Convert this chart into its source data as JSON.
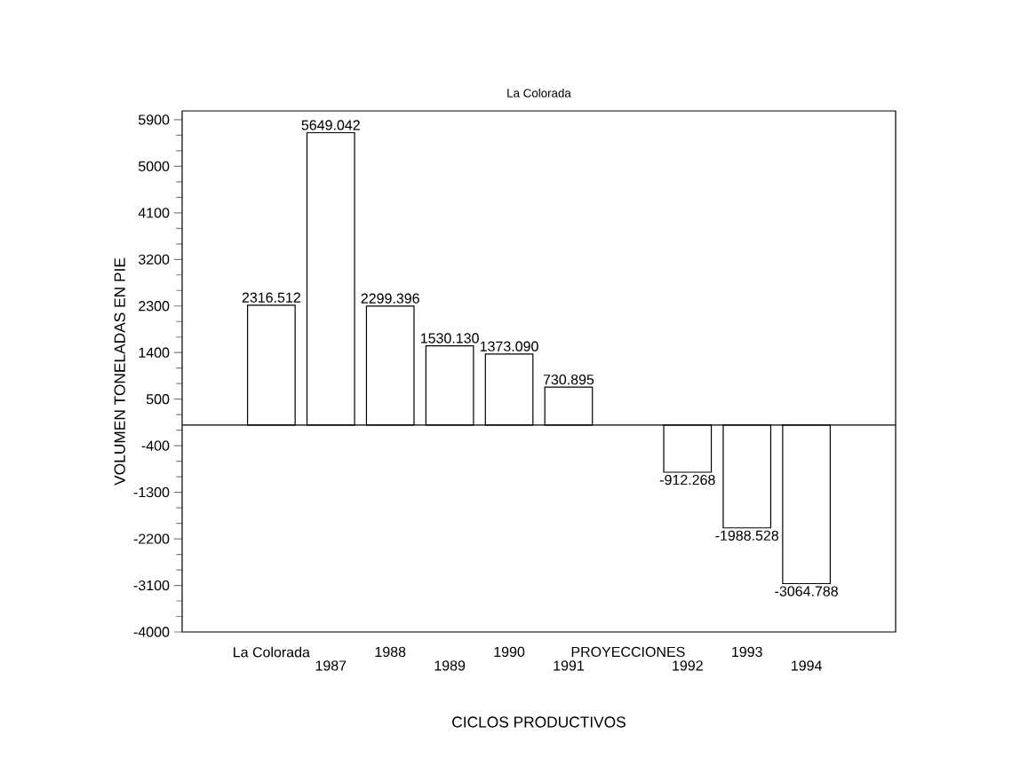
{
  "chart_data": {
    "type": "bar",
    "title": "La Colorada",
    "xlabel": "CICLOS PRODUCTIVOS",
    "ylabel": "VOLUMEN TONELADAS EN PIE",
    "categories": [
      null,
      "La Colorada",
      "1987",
      "1988",
      "1989",
      "1990",
      "1991",
      "PROYECCIONES",
      "1992",
      "1993",
      "1994",
      null
    ],
    "values": [
      null,
      2316.512,
      5649.042,
      2299.396,
      1530.13,
      1373.09,
      730.895,
      null,
      -912.268,
      -1988.528,
      -3064.788,
      null
    ],
    "value_labels": [
      null,
      "2316.512",
      "5649.042",
      "2299.396",
      "1530.130",
      "1373.090",
      "730.895",
      null,
      "-912.268",
      "-1988.528",
      "-3064.788",
      null
    ],
    "color": "#ffffff",
    "ylim": [
      -4000,
      6070
    ],
    "yticks": [
      -4000,
      -3100,
      -2200,
      -1300,
      -400,
      500,
      1400,
      2300,
      3200,
      4100,
      5000,
      5900
    ]
  }
}
